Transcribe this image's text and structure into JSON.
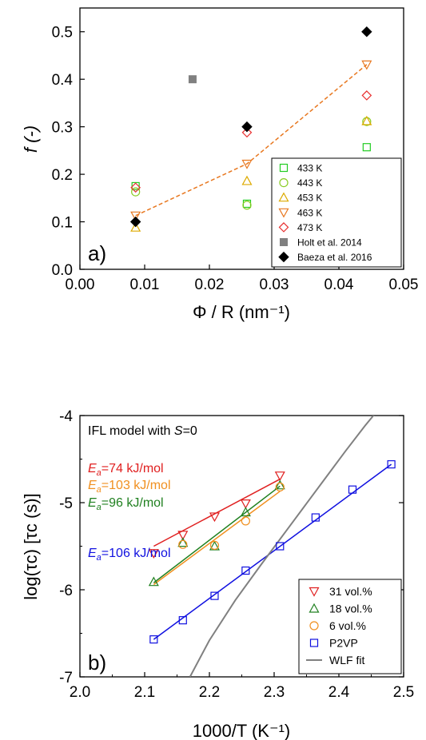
{
  "chart_data": [
    {
      "type": "scatter",
      "panel_label": "a)",
      "ylabel": "f (-)",
      "xlabel": "Φ / R (nm⁻¹)",
      "xlim": [
        0.0,
        0.05
      ],
      "ylim": [
        0.0,
        0.55
      ],
      "xticks": [
        "0.00",
        "0.01",
        "0.02",
        "0.03",
        "0.04",
        "0.05"
      ],
      "yticks": [
        "0.0",
        "0.1",
        "0.2",
        "0.3",
        "0.4",
        "0.5"
      ],
      "legend_position": "bottom-right",
      "series": [
        {
          "name": "433 K",
          "marker": "square-open",
          "color": "#22cc22",
          "x": [
            0.0086,
            0.0258,
            0.0443
          ],
          "y": [
            0.175,
            0.138,
            0.257
          ]
        },
        {
          "name": "443 K",
          "marker": "circle-open",
          "color": "#88cc22",
          "x": [
            0.0086,
            0.0258,
            0.0443
          ],
          "y": [
            0.163,
            0.135,
            0.311
          ]
        },
        {
          "name": "453 K",
          "marker": "triangle-up-open",
          "color": "#ddaa00",
          "x": [
            0.0086,
            0.0258,
            0.0443
          ],
          "y": [
            0.088,
            0.186,
            0.312
          ]
        },
        {
          "name": "463 K",
          "marker": "triangle-down-open",
          "color": "#e87820",
          "x": [
            0.0086,
            0.0258,
            0.0443
          ],
          "y": [
            0.113,
            0.222,
            0.431
          ]
        },
        {
          "name": "473 K",
          "marker": "diamond-open",
          "color": "#e83030",
          "x": [
            0.0086,
            0.0258,
            0.0443
          ],
          "y": [
            0.172,
            0.288,
            0.366
          ]
        },
        {
          "name": "Holt et al. 2014",
          "marker": "square-filled",
          "color": "#808080",
          "x": [
            0.0174
          ],
          "y": [
            0.4
          ]
        },
        {
          "name": "Baeza et al. 2016",
          "marker": "diamond-filled",
          "color": "#000000",
          "x": [
            0.0086,
            0.0258,
            0.0443
          ],
          "y": [
            0.1,
            0.3,
            0.5
          ]
        }
      ],
      "fit_line": {
        "color": "#e87820",
        "style": "dashed",
        "x": [
          0.0086,
          0.0258,
          0.0443
        ],
        "y": [
          0.113,
          0.222,
          0.431
        ]
      }
    },
    {
      "type": "scatter",
      "panel_label": "b)",
      "ylabel": "log(τc)  [τc (s)]",
      "xlabel": "1000/T (K⁻¹)",
      "xlim": [
        2.0,
        2.5
      ],
      "ylim": [
        -7,
        -4
      ],
      "xticks": [
        "2.0",
        "2.1",
        "2.2",
        "2.3",
        "2.4",
        "2.5"
      ],
      "yticks": [
        "-7",
        "-6",
        "-5",
        "-4"
      ],
      "legend_position": "bottom-right",
      "model_note": {
        "prefix": "IFL model with ",
        "variable": "S",
        "suffix": "=0"
      },
      "annotations": [
        {
          "symbol": "E",
          "subscript": "a",
          "rest": "=74 kJ/mol",
          "color": "#e02020"
        },
        {
          "symbol": "E",
          "subscript": "a",
          "rest": "=103 kJ/mol",
          "color": "#f09020"
        },
        {
          "symbol": "E",
          "subscript": "a",
          "rest": "=96 kJ/mol",
          "color": "#208020"
        },
        {
          "symbol": "E",
          "subscript": "a",
          "rest": "=106 kJ/mol",
          "color": "#1010e0"
        }
      ],
      "series": [
        {
          "name": "31 vol.%",
          "marker": "triangle-down-open",
          "color": "#e02020",
          "x": [
            2.114,
            2.159,
            2.208,
            2.256,
            2.309
          ],
          "y": [
            -5.58,
            -5.37,
            -5.16,
            -5.01,
            -4.69
          ],
          "fit": {
            "x": [
              2.114,
              2.309
            ],
            "y": [
              -5.5,
              -4.73
            ]
          }
        },
        {
          "name": "18 vol.%",
          "marker": "triangle-up-open",
          "color": "#208020",
          "x": [
            2.114,
            2.159,
            2.208,
            2.256,
            2.309
          ],
          "y": [
            -5.91,
            -5.46,
            -5.5,
            -5.11,
            -4.8
          ],
          "fit": {
            "x": [
              2.114,
              2.309
            ],
            "y": [
              -5.92,
              -4.81
            ]
          }
        },
        {
          "name": "6 vol.%",
          "marker": "circle-open",
          "color": "#f09020",
          "x": [
            2.159,
            2.208,
            2.256,
            2.309
          ],
          "y": [
            -5.48,
            -5.49,
            -5.21,
            -4.82
          ],
          "fit": {
            "x": [
              2.114,
              2.309
            ],
            "y": [
              -5.94,
              -4.87
            ]
          }
        },
        {
          "name": "P2VP",
          "marker": "square-open",
          "color": "#1010e0",
          "x": [
            2.114,
            2.159,
            2.208,
            2.256,
            2.309,
            2.364,
            2.421,
            2.481
          ],
          "y": [
            -6.57,
            -6.35,
            -6.07,
            -5.78,
            -5.5,
            -5.17,
            -4.85,
            -4.56
          ],
          "fit": {
            "x": [
              2.114,
              2.481
            ],
            "y": [
              -6.57,
              -4.56
            ]
          }
        },
        {
          "name": "WLF fit",
          "marker": "line",
          "color": "#808080",
          "x": [
            2.17,
            2.2,
            2.24,
            2.28,
            2.32,
            2.35,
            2.38,
            2.41,
            2.44,
            2.47
          ],
          "y": [
            -7.0,
            -6.58,
            -6.12,
            -5.71,
            -5.31,
            -5.01,
            -4.71,
            -4.41,
            -4.12,
            -3.85
          ]
        }
      ]
    }
  ]
}
